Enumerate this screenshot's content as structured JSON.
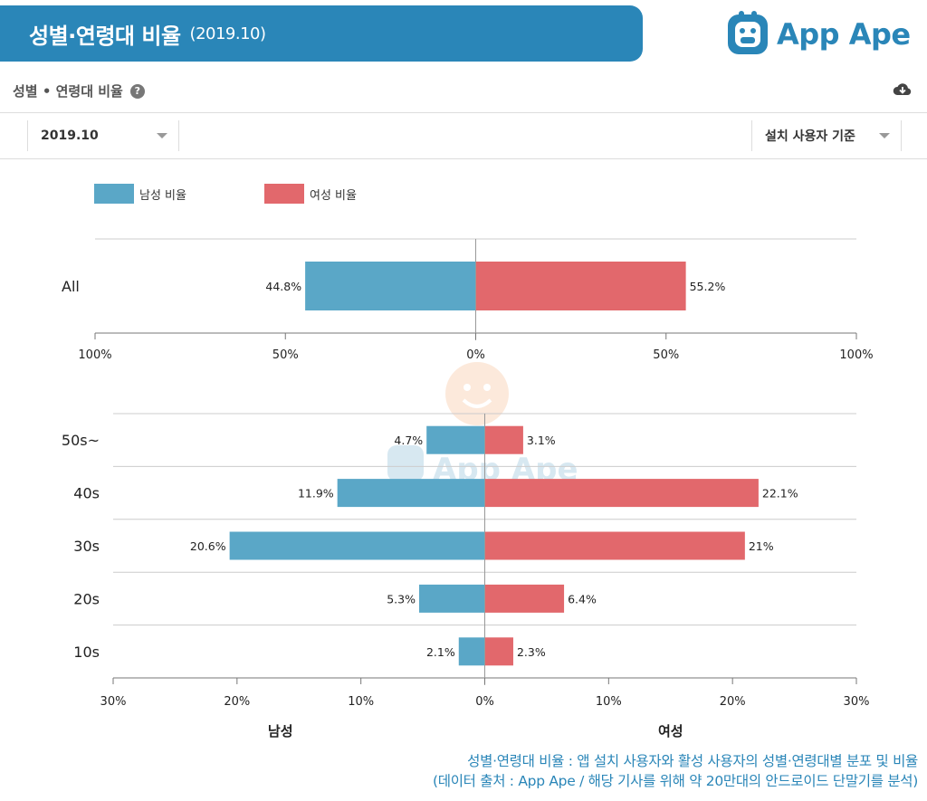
{
  "header": {
    "title": "성별·연령대 비율",
    "period": "(2019.10)"
  },
  "brand": {
    "name": "App Ape",
    "color": "#2a86b8"
  },
  "subheader": {
    "title": "성별 • 연령대 비율",
    "help_icon": "question-circle-icon",
    "download_icon": "cloud-download-icon"
  },
  "toolbar": {
    "period_select": "2019.10",
    "basis_select": "설치 사용자 기준"
  },
  "legend": {
    "male": "남성 비율",
    "female": "여성 비율"
  },
  "colors": {
    "male": "#5aa7c7",
    "female": "#e2686c"
  },
  "chart_data": [
    {
      "type": "bar",
      "orientation": "horizontal-diverging",
      "categories": [
        "All"
      ],
      "series": [
        {
          "name": "남성 비율",
          "values": [
            44.8
          ]
        },
        {
          "name": "여성 비율",
          "values": [
            55.2
          ]
        }
      ],
      "value_labels": {
        "male": [
          "44.8%"
        ],
        "female": [
          "55.2%"
        ]
      },
      "xlim": [
        -100,
        100
      ],
      "ticks": [
        "100%",
        "50%",
        "0%",
        "50%",
        "100%"
      ]
    },
    {
      "type": "bar",
      "orientation": "horizontal-diverging",
      "categories": [
        "50s~",
        "40s",
        "30s",
        "20s",
        "10s"
      ],
      "series": [
        {
          "name": "남성 비율",
          "values": [
            4.7,
            11.9,
            20.6,
            5.3,
            2.1
          ]
        },
        {
          "name": "여성 비율",
          "values": [
            3.1,
            22.1,
            21,
            6.4,
            2.3
          ]
        }
      ],
      "value_labels": {
        "male": [
          "4.7%",
          "11.9%",
          "20.6%",
          "5.3%",
          "2.1%"
        ],
        "female": [
          "3.1%",
          "22.1%",
          "21%",
          "6.4%",
          "2.3%"
        ]
      },
      "xlim": [
        -30,
        30
      ],
      "ticks": [
        "30%",
        "20%",
        "10%",
        "0%",
        "10%",
        "20%",
        "30%"
      ],
      "xlabel_left": "남성",
      "xlabel_right": "여성"
    }
  ],
  "footnote": {
    "line1": "성별·연령대 비율 : 앱 설치 사용자와 활성 사용자의 성별·연령대별 분포 및 비율",
    "line2": "(데이터 출처 : App Ape / 해당 기사를 위해 약 20만대의 안드로이드 단말기를 분석)"
  }
}
